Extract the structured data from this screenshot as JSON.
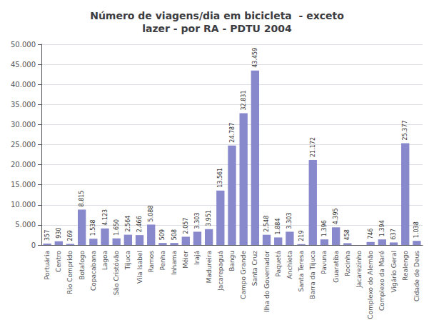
{
  "chart_data": {
    "type": "bar",
    "title": "Número de viagens/dia em bicicleta  - exceto\nlazer - por RA - PDTU 2004",
    "categories": [
      "Portuária",
      "Centro",
      "Rio Comprido",
      "Botafogo",
      "Copacabana",
      "Lagoa",
      "São Cristóvão",
      "Tijuca",
      "Vila Isabel",
      "Ramos",
      "Penha",
      "Inhama",
      "Méier",
      "Irajá",
      "Madureira",
      "Jacarepaguá",
      "Bangu",
      "Campo Grande",
      "Santa Cruz",
      "Ilha do Governador",
      "Paquetá",
      "Anchieta",
      "Santa Teresa",
      "Barra da Tijuca",
      "Pavuna",
      "Guaratiba",
      "Rocinha",
      "Jacarezinho",
      "Complexo do Alemão",
      "Complexo da Maré",
      "Vigário Geral",
      "Realengo",
      "Cidade de Deus"
    ],
    "values": [
      357,
      930,
      269,
      8815,
      1538,
      4123,
      1650,
      2564,
      2466,
      5088,
      509,
      508,
      2057,
      3303,
      3951,
      13561,
      24787,
      32831,
      43459,
      2548,
      1884,
      3303,
      219,
      21172,
      1396,
      4395,
      458,
      0,
      746,
      1394,
      637,
      25377,
      1038
    ],
    "value_labels": [
      "357",
      "930",
      "269",
      "8.815",
      "1.538",
      "4.123",
      "1.650",
      "2.564",
      "2.466",
      "5.088",
      "509",
      "508",
      "2.057",
      "3.303",
      "3.951",
      "13.561",
      "24.787",
      "32.831",
      "43.459",
      "2.548",
      "1.884",
      "3.303",
      "219",
      "21.172",
      "1.396",
      "4.395",
      "458",
      null,
      "746",
      "1.394",
      "637",
      "25.377",
      "1.038"
    ],
    "color": "#8888cc",
    "ylim": [
      0,
      50000
    ],
    "yticks": [
      0,
      {
        "value": 5000,
        "label": "5.000"
      },
      {
        "value": 10000,
        "label": "10.000"
      },
      {
        "value": 15000,
        "label": "15.000"
      },
      {
        "value": 20000,
        "label": "20.000"
      },
      {
        "value": 25000,
        "label": "25.000"
      },
      {
        "value": 30000,
        "label": "30.000"
      },
      {
        "value": 35000,
        "label": "35.000"
      },
      {
        "value": 40000,
        "label": "40.000"
      },
      {
        "value": 45000,
        "label": "45.000"
      },
      {
        "value": 50000,
        "label": "50.000"
      }
    ],
    "grid": true,
    "data_labels": true
  }
}
